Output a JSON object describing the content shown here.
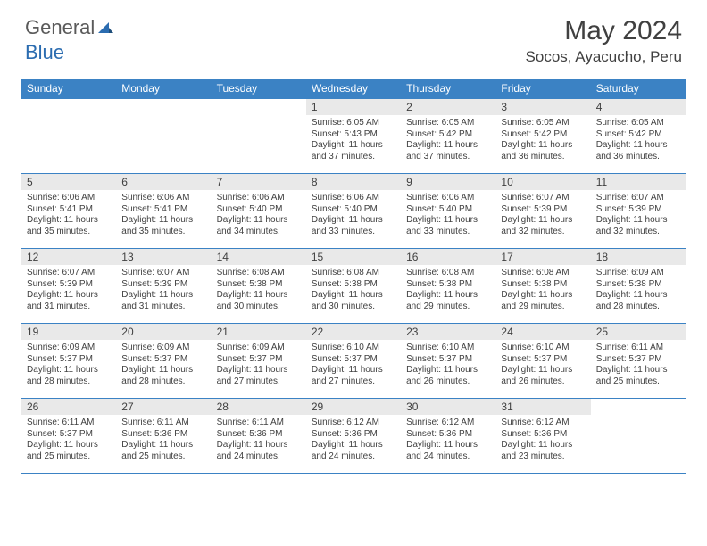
{
  "logo": {
    "text_gray": "General",
    "text_blue": "Blue"
  },
  "title": "May 2024",
  "location": "Socos, Ayacucho, Peru",
  "day_headers": [
    "Sunday",
    "Monday",
    "Tuesday",
    "Wednesday",
    "Thursday",
    "Friday",
    "Saturday"
  ],
  "colors": {
    "header_blue": "#3b82c4",
    "cell_gray": "#e9e9e9",
    "text": "#404040",
    "logo_blue": "#2b6cb0",
    "logo_gray": "#5a5a5a"
  },
  "weeks": [
    [
      {
        "date": "",
        "sunrise": "",
        "sunset": "",
        "daylight": ""
      },
      {
        "date": "",
        "sunrise": "",
        "sunset": "",
        "daylight": ""
      },
      {
        "date": "",
        "sunrise": "",
        "sunset": "",
        "daylight": ""
      },
      {
        "date": "1",
        "sunrise": "Sunrise: 6:05 AM",
        "sunset": "Sunset: 5:43 PM",
        "daylight": "Daylight: 11 hours and 37 minutes."
      },
      {
        "date": "2",
        "sunrise": "Sunrise: 6:05 AM",
        "sunset": "Sunset: 5:42 PM",
        "daylight": "Daylight: 11 hours and 37 minutes."
      },
      {
        "date": "3",
        "sunrise": "Sunrise: 6:05 AM",
        "sunset": "Sunset: 5:42 PM",
        "daylight": "Daylight: 11 hours and 36 minutes."
      },
      {
        "date": "4",
        "sunrise": "Sunrise: 6:05 AM",
        "sunset": "Sunset: 5:42 PM",
        "daylight": "Daylight: 11 hours and 36 minutes."
      }
    ],
    [
      {
        "date": "5",
        "sunrise": "Sunrise: 6:06 AM",
        "sunset": "Sunset: 5:41 PM",
        "daylight": "Daylight: 11 hours and 35 minutes."
      },
      {
        "date": "6",
        "sunrise": "Sunrise: 6:06 AM",
        "sunset": "Sunset: 5:41 PM",
        "daylight": "Daylight: 11 hours and 35 minutes."
      },
      {
        "date": "7",
        "sunrise": "Sunrise: 6:06 AM",
        "sunset": "Sunset: 5:40 PM",
        "daylight": "Daylight: 11 hours and 34 minutes."
      },
      {
        "date": "8",
        "sunrise": "Sunrise: 6:06 AM",
        "sunset": "Sunset: 5:40 PM",
        "daylight": "Daylight: 11 hours and 33 minutes."
      },
      {
        "date": "9",
        "sunrise": "Sunrise: 6:06 AM",
        "sunset": "Sunset: 5:40 PM",
        "daylight": "Daylight: 11 hours and 33 minutes."
      },
      {
        "date": "10",
        "sunrise": "Sunrise: 6:07 AM",
        "sunset": "Sunset: 5:39 PM",
        "daylight": "Daylight: 11 hours and 32 minutes."
      },
      {
        "date": "11",
        "sunrise": "Sunrise: 6:07 AM",
        "sunset": "Sunset: 5:39 PM",
        "daylight": "Daylight: 11 hours and 32 minutes."
      }
    ],
    [
      {
        "date": "12",
        "sunrise": "Sunrise: 6:07 AM",
        "sunset": "Sunset: 5:39 PM",
        "daylight": "Daylight: 11 hours and 31 minutes."
      },
      {
        "date": "13",
        "sunrise": "Sunrise: 6:07 AM",
        "sunset": "Sunset: 5:39 PM",
        "daylight": "Daylight: 11 hours and 31 minutes."
      },
      {
        "date": "14",
        "sunrise": "Sunrise: 6:08 AM",
        "sunset": "Sunset: 5:38 PM",
        "daylight": "Daylight: 11 hours and 30 minutes."
      },
      {
        "date": "15",
        "sunrise": "Sunrise: 6:08 AM",
        "sunset": "Sunset: 5:38 PM",
        "daylight": "Daylight: 11 hours and 30 minutes."
      },
      {
        "date": "16",
        "sunrise": "Sunrise: 6:08 AM",
        "sunset": "Sunset: 5:38 PM",
        "daylight": "Daylight: 11 hours and 29 minutes."
      },
      {
        "date": "17",
        "sunrise": "Sunrise: 6:08 AM",
        "sunset": "Sunset: 5:38 PM",
        "daylight": "Daylight: 11 hours and 29 minutes."
      },
      {
        "date": "18",
        "sunrise": "Sunrise: 6:09 AM",
        "sunset": "Sunset: 5:38 PM",
        "daylight": "Daylight: 11 hours and 28 minutes."
      }
    ],
    [
      {
        "date": "19",
        "sunrise": "Sunrise: 6:09 AM",
        "sunset": "Sunset: 5:37 PM",
        "daylight": "Daylight: 11 hours and 28 minutes."
      },
      {
        "date": "20",
        "sunrise": "Sunrise: 6:09 AM",
        "sunset": "Sunset: 5:37 PM",
        "daylight": "Daylight: 11 hours and 28 minutes."
      },
      {
        "date": "21",
        "sunrise": "Sunrise: 6:09 AM",
        "sunset": "Sunset: 5:37 PM",
        "daylight": "Daylight: 11 hours and 27 minutes."
      },
      {
        "date": "22",
        "sunrise": "Sunrise: 6:10 AM",
        "sunset": "Sunset: 5:37 PM",
        "daylight": "Daylight: 11 hours and 27 minutes."
      },
      {
        "date": "23",
        "sunrise": "Sunrise: 6:10 AM",
        "sunset": "Sunset: 5:37 PM",
        "daylight": "Daylight: 11 hours and 26 minutes."
      },
      {
        "date": "24",
        "sunrise": "Sunrise: 6:10 AM",
        "sunset": "Sunset: 5:37 PM",
        "daylight": "Daylight: 11 hours and 26 minutes."
      },
      {
        "date": "25",
        "sunrise": "Sunrise: 6:11 AM",
        "sunset": "Sunset: 5:37 PM",
        "daylight": "Daylight: 11 hours and 25 minutes."
      }
    ],
    [
      {
        "date": "26",
        "sunrise": "Sunrise: 6:11 AM",
        "sunset": "Sunset: 5:37 PM",
        "daylight": "Daylight: 11 hours and 25 minutes."
      },
      {
        "date": "27",
        "sunrise": "Sunrise: 6:11 AM",
        "sunset": "Sunset: 5:36 PM",
        "daylight": "Daylight: 11 hours and 25 minutes."
      },
      {
        "date": "28",
        "sunrise": "Sunrise: 6:11 AM",
        "sunset": "Sunset: 5:36 PM",
        "daylight": "Daylight: 11 hours and 24 minutes."
      },
      {
        "date": "29",
        "sunrise": "Sunrise: 6:12 AM",
        "sunset": "Sunset: 5:36 PM",
        "daylight": "Daylight: 11 hours and 24 minutes."
      },
      {
        "date": "30",
        "sunrise": "Sunrise: 6:12 AM",
        "sunset": "Sunset: 5:36 PM",
        "daylight": "Daylight: 11 hours and 24 minutes."
      },
      {
        "date": "31",
        "sunrise": "Sunrise: 6:12 AM",
        "sunset": "Sunset: 5:36 PM",
        "daylight": "Daylight: 11 hours and 23 minutes."
      },
      {
        "date": "",
        "sunrise": "",
        "sunset": "",
        "daylight": ""
      }
    ]
  ]
}
